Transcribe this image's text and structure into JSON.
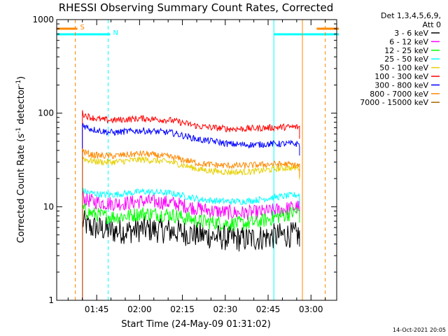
{
  "chart_data": {
    "type": "line",
    "title": "RHESSI Observing Summary Count Rates, Corrected",
    "xlabel": "Start Time (24-May-09 01:31:02)",
    "ylabel": "Corrected Count Rate (s",
    "ylabel_sup": "-1",
    "ylabel_mid": " detector",
    "ylabel_sup2": "-1",
    "ylabel_end": ")",
    "x_unit": "minutes since 01:31:02",
    "x_ticks": [
      "01:45",
      "02:00",
      "02:15",
      "02:30",
      "02:45",
      "03:00"
    ],
    "x_tick_minutes": [
      14,
      29,
      44,
      59,
      74,
      89
    ],
    "xlim": [
      0,
      98
    ],
    "y_scale": "log",
    "ylim": [
      1,
      1000
    ],
    "y_ticks": [
      "1",
      "10",
      "100",
      "1000"
    ],
    "y_tick_values": [
      1,
      10,
      100,
      1000
    ],
    "legend_header": [
      "Det 1,3,4,5,6,9,",
      "Att 0"
    ],
    "legend_position": "top-right",
    "series": [
      {
        "name": "3 - 6 keV",
        "color": "#000000",
        "x": [
          9,
          10,
          12,
          16,
          20,
          25,
          30,
          40,
          50,
          55,
          60,
          65,
          70,
          75,
          80,
          85
        ],
        "values": [
          7,
          6.5,
          6,
          5.8,
          5.5,
          5.5,
          5.8,
          5.5,
          5,
          4.8,
          4.6,
          4.5,
          4.6,
          4.8,
          5,
          5
        ]
      },
      {
        "name": "6 - 12 keV",
        "color": "#ff00ff",
        "x": [
          9,
          10,
          12,
          16,
          20,
          25,
          30,
          40,
          50,
          55,
          60,
          65,
          70,
          75,
          80,
          85
        ],
        "values": [
          13,
          12,
          11.5,
          11,
          10.8,
          11,
          11.5,
          11,
          9.5,
          9,
          8.7,
          8.6,
          8.7,
          9,
          9.5,
          10
        ]
      },
      {
        "name": "12 - 25 keV",
        "color": "#00ff00",
        "x": [
          9,
          10,
          12,
          16,
          20,
          25,
          30,
          40,
          50,
          55,
          60,
          65,
          70,
          75,
          80,
          85
        ],
        "values": [
          9.5,
          9,
          8.5,
          8,
          7.8,
          8,
          8.5,
          8.2,
          7,
          6.8,
          6.6,
          6.6,
          6.8,
          7.5,
          8.2,
          9
        ]
      },
      {
        "name": "25 - 50 keV",
        "color": "#00ffff",
        "x": [
          9,
          10,
          12,
          16,
          20,
          25,
          30,
          40,
          50,
          55,
          60,
          65,
          70,
          75,
          80,
          85
        ],
        "values": [
          15,
          14.5,
          14,
          13.5,
          13.5,
          14,
          14.5,
          14,
          12,
          11.6,
          11.4,
          11.4,
          11.8,
          12.5,
          13,
          13.5
        ]
      },
      {
        "name": "50 - 100 keV",
        "color": "#e6d000",
        "x": [
          9,
          10,
          12,
          16,
          20,
          25,
          30,
          40,
          50,
          55,
          60,
          65,
          70,
          75,
          80,
          85
        ],
        "values": [
          34,
          32,
          31,
          30,
          30,
          31,
          32,
          30,
          25,
          24,
          23.5,
          23.5,
          24,
          25,
          26,
          26
        ]
      },
      {
        "name": "100 - 300 keV",
        "color": "#ff0000",
        "x": [
          9,
          10,
          12,
          16,
          20,
          25,
          30,
          40,
          50,
          55,
          60,
          65,
          70,
          75,
          80,
          85
        ],
        "values": [
          100,
          95,
          90,
          85,
          84,
          86,
          88,
          84,
          72,
          70,
          68,
          68,
          69,
          70,
          71,
          71
        ]
      },
      {
        "name": "300 - 800 keV",
        "color": "#0000ff",
        "x": [
          9,
          10,
          12,
          16,
          20,
          25,
          30,
          40,
          50,
          55,
          60,
          65,
          70,
          75,
          80,
          85
        ],
        "values": [
          77,
          72,
          68,
          64,
          62,
          64,
          65,
          62,
          52,
          50,
          47,
          46,
          46,
          47,
          47,
          47
        ]
      },
      {
        "name": "800 - 7000 keV",
        "color": "#ff8800",
        "x": [
          9,
          10,
          12,
          16,
          20,
          25,
          30,
          40,
          50,
          55,
          60,
          65,
          70,
          75,
          80,
          85
        ],
        "values": [
          40,
          38,
          36,
          35,
          35,
          36,
          37,
          34,
          29,
          28,
          27.5,
          27.5,
          28,
          28.5,
          28.5,
          27.5
        ]
      },
      {
        "name": "7000 - 15000 keV",
        "color": "#aa6600",
        "x": [],
        "values": []
      }
    ],
    "top_bars": [
      {
        "label": "S",
        "color": "#ff8800",
        "segments": [
          [
            0,
            6.5
          ],
          [
            91,
            98
          ]
        ]
      },
      {
        "label": "N",
        "color": "#00ffff",
        "segments": [
          [
            0,
            18
          ],
          [
            76,
            98
          ]
        ]
      }
    ],
    "vlines": [
      {
        "color": "#ff8800",
        "x": 6.5,
        "style": "dashed"
      },
      {
        "color": "#00ffff",
        "x": 18,
        "style": "dashed"
      },
      {
        "color": "#00ffff",
        "x": 76,
        "style": "solid"
      },
      {
        "color": "#ff8800",
        "x": 86,
        "style": "solid"
      },
      {
        "color": "#ff8800",
        "x": 94,
        "style": "dashed"
      }
    ],
    "footer_stamp": "14-Oct-2021 20:05"
  }
}
